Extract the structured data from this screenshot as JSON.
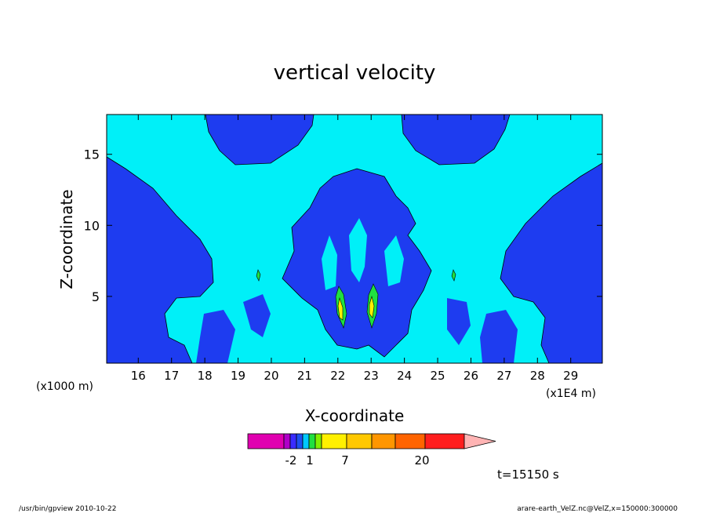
{
  "chart_data": {
    "type": "heatmap",
    "title": "vertical velocity",
    "xlabel": "X-coordinate",
    "ylabel": "Z-coordinate",
    "x_unit": "(x1E4 m)",
    "y_unit": "(x1000 m)",
    "x_ticks": [
      "16",
      "17",
      "18",
      "19",
      "20",
      "21",
      "22",
      "23",
      "24",
      "25",
      "26",
      "27",
      "28",
      "29"
    ],
    "y_ticks": [
      "5",
      "10",
      "15"
    ],
    "xlim": [
      15.05,
      29.95
    ],
    "ylim": [
      0.3,
      17.8
    ],
    "colorbar": {
      "labels": [
        "-2",
        "1",
        "7",
        "20"
      ],
      "colors": [
        "#e000b0",
        "#b000c8",
        "#3a2cff",
        "#1e50f0",
        "#00c8ff",
        "#20e040",
        "#80f000",
        "#fff000",
        "#ffc800",
        "#ff9600",
        "#ff6400",
        "#ff1e1e",
        "#ff8080",
        "#ffb4b4"
      ]
    },
    "time_label": "t=15150 s",
    "contour_levels": [
      -2,
      1,
      7,
      20
    ],
    "background_color": "#00f0f8",
    "negative_color": "#1e3cf0"
  },
  "footer": {
    "left": "/usr/bin/gpview   2010-10-22",
    "right": "arare-earth_VelZ.nc@VelZ,x=150000:300000"
  }
}
